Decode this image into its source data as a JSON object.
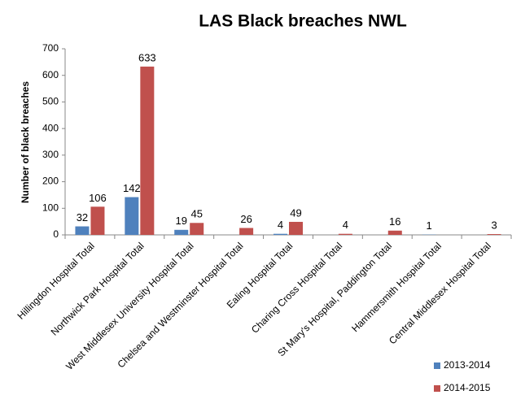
{
  "chart_data": {
    "type": "bar",
    "title": "LAS Black breaches NWL",
    "y_label": "Number of black breaches",
    "categories": [
      "Hillingdon Hospital Total",
      "Northwick Park Hospital Total",
      "West Middlesex University Hospital Total",
      "Chelsea and Westminster Hospital Total",
      "Ealing Hospital Total",
      "Charing Cross Hospital Total",
      "St Mary's Hospital, Paddington Total",
      "Hammersmith Hospital Total",
      "Central Middlesex Hospital Total"
    ],
    "series": [
      {
        "name": "2013-2014",
        "color": "#4f81bd",
        "values": [
          32,
          142,
          19,
          null,
          4,
          null,
          null,
          1,
          null
        ]
      },
      {
        "name": "2014-2015",
        "color": "#c0504d",
        "values": [
          106,
          633,
          45,
          26,
          49,
          4,
          16,
          null,
          3
        ]
      }
    ],
    "ylim": [
      0,
      700
    ],
    "yticks": [
      0,
      100,
      200,
      300,
      400,
      500,
      600,
      700
    ],
    "grid": false,
    "legend": "bottom-right"
  }
}
